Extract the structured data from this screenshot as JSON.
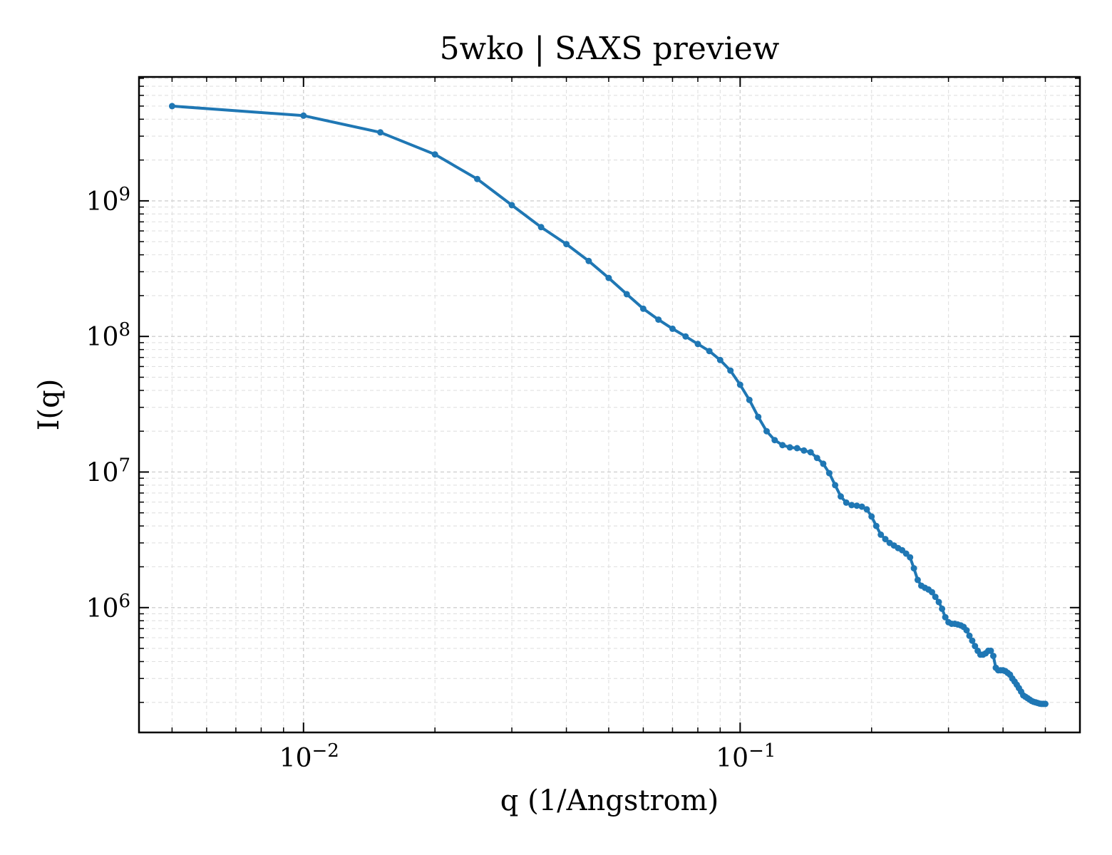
{
  "chart_data": {
    "type": "line",
    "title": "5wko | SAXS preview",
    "xlabel": "q (1/Angstrom)",
    "ylabel": "I(q)",
    "xscale": "log",
    "yscale": "log",
    "xlim": [
      0.0042,
      0.6
    ],
    "ylim": [
      120000.0,
      8200000000.0
    ],
    "grid": true,
    "line_color": "#1f77b4",
    "x_tick_labels": [
      {
        "value": 0.01,
        "base": "10",
        "exp": "−2"
      },
      {
        "value": 0.1,
        "base": "10",
        "exp": "−1"
      }
    ],
    "y_tick_labels": [
      {
        "value": 1000000.0,
        "base": "10",
        "exp": "6"
      },
      {
        "value": 10000000.0,
        "base": "10",
        "exp": "7"
      },
      {
        "value": 100000000.0,
        "base": "10",
        "exp": "8"
      },
      {
        "value": 1000000000.0,
        "base": "10",
        "exp": "9"
      }
    ],
    "series": [
      {
        "x": [
          0.005,
          0.01,
          0.015,
          0.02,
          0.025,
          0.03,
          0.035,
          0.04,
          0.045,
          0.05,
          0.055,
          0.06,
          0.065,
          0.07,
          0.075,
          0.08,
          0.085,
          0.09,
          0.095,
          0.1,
          0.105,
          0.11,
          0.115,
          0.12,
          0.125,
          0.13,
          0.135,
          0.14,
          0.145,
          0.15,
          0.155,
          0.16,
          0.165,
          0.17,
          0.175,
          0.18,
          0.185,
          0.19,
          0.195,
          0.2,
          0.205,
          0.21,
          0.215,
          0.22,
          0.225,
          0.23,
          0.235,
          0.24,
          0.245,
          0.25,
          0.255,
          0.26,
          0.265,
          0.27,
          0.275,
          0.28,
          0.285,
          0.29,
          0.295,
          0.3,
          0.305,
          0.31,
          0.315,
          0.32,
          0.325,
          0.33,
          0.335,
          0.34,
          0.345,
          0.35,
          0.355,
          0.36,
          0.365,
          0.37,
          0.375,
          0.38,
          0.385,
          0.39,
          0.395,
          0.4,
          0.405,
          0.41,
          0.415,
          0.42,
          0.425,
          0.43,
          0.435,
          0.44,
          0.445,
          0.45,
          0.455,
          0.46,
          0.465,
          0.47,
          0.475,
          0.48,
          0.485,
          0.49,
          0.495,
          0.5
        ],
        "y": [
          5000000000.0,
          4250000000.0,
          3200000000.0,
          2200000000.0,
          1450000000.0,
          930000000.0,
          640000000.0,
          480000000.0,
          360000000.0,
          270000000.0,
          205000000.0,
          160000000.0,
          133000000.0,
          114000000.0,
          100000000.0,
          88000000.0,
          78000000.0,
          67000000.0,
          56000000.0,
          44000000.0,
          34000000.0,
          25500000.0,
          20000000.0,
          17200000.0,
          15800000.0,
          15200000.0,
          15000000.0,
          14400000.0,
          14000000.0,
          12700000.0,
          11500000.0,
          9800000.0,
          8000000.0,
          6600000.0,
          5950000.0,
          5700000.0,
          5650000.0,
          5550000.0,
          5300000.0,
          4700000.0,
          4000000.0,
          3450000.0,
          3200000.0,
          3000000.0,
          2870000.0,
          2750000.0,
          2650000.0,
          2500000.0,
          2350000.0,
          1950000.0,
          1600000.0,
          1450000.0,
          1400000.0,
          1360000.0,
          1300000.0,
          1200000.0,
          1100000.0,
          980000.0,
          850000.0,
          780000.0,
          760000.0,
          760000.0,
          750000.0,
          740000.0,
          720000.0,
          680000.0,
          620000.0,
          570000.0,
          520000.0,
          480000.0,
          450000.0,
          450000.0,
          460000.0,
          480000.0,
          480000.0,
          440000.0,
          360000.0,
          345000.0,
          345000.0,
          345000.0,
          340000.0,
          330000.0,
          320000.0,
          300000.0,
          285000.0,
          270000.0,
          255000.0,
          240000.0,
          225000.0,
          220000.0,
          215000.0,
          210000.0,
          205000.0,
          202000.0,
          200000.0,
          198000.0,
          196000.0,
          195000.0,
          195000.0,
          195000.0
        ]
      }
    ]
  }
}
